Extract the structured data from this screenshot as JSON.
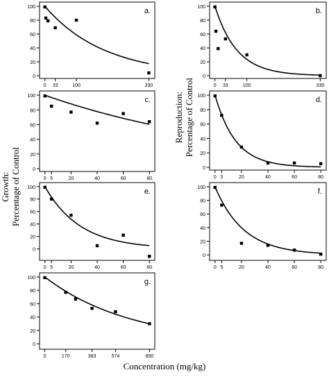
{
  "figure": {
    "growth_label": [
      "Growth:",
      "Percentage of Control"
    ],
    "reproduction_label": [
      "Reproduction:",
      "Percentage of Control"
    ],
    "xlabel": "Concentration (mg/kg)"
  },
  "chart_data": [
    {
      "type": "scatter",
      "panel": "a.",
      "xticks": [
        0,
        33,
        100,
        330
      ],
      "xtick_labels": [
        "0",
        "33",
        "100",
        "330"
      ],
      "xlim": [
        -8,
        340
      ],
      "yticks": [
        0,
        20,
        40,
        60,
        80,
        100
      ],
      "ylim": [
        0,
        102
      ],
      "points": [
        [
          0,
          99
        ],
        [
          3,
          83
        ],
        [
          10,
          79
        ],
        [
          33,
          69
        ],
        [
          100,
          80
        ],
        [
          330,
          4
        ]
      ],
      "fit": {
        "model": "exponential",
        "a": 100,
        "k": 0.0053
      }
    },
    {
      "type": "scatter",
      "panel": "b.",
      "xticks": [
        0,
        33,
        100,
        330
      ],
      "xtick_labels": [
        "0",
        "33",
        "100",
        "330"
      ],
      "xlim": [
        -8,
        340
      ],
      "yticks": [
        0,
        20,
        40,
        60,
        80,
        100
      ],
      "ylim": [
        0,
        102
      ],
      "points": [
        [
          0,
          99
        ],
        [
          3,
          64
        ],
        [
          10,
          39
        ],
        [
          33,
          53
        ],
        [
          100,
          30
        ],
        [
          330,
          0
        ]
      ],
      "fit": {
        "model": "exponential",
        "a": 100,
        "k": 0.0145
      }
    },
    {
      "type": "scatter",
      "panel": "c.",
      "xticks": [
        0,
        5,
        20,
        40,
        60,
        80
      ],
      "xtick_labels": [
        "0",
        "5",
        "20",
        "40",
        "60",
        "80"
      ],
      "xlim": [
        -2,
        82
      ],
      "yticks": [
        0,
        20,
        40,
        60,
        80,
        100
      ],
      "ylim": [
        0,
        102
      ],
      "points": [
        [
          0,
          99
        ],
        [
          5,
          85
        ],
        [
          20,
          77
        ],
        [
          40,
          62
        ],
        [
          60,
          75
        ],
        [
          80,
          64
        ]
      ],
      "fit": {
        "model": "exponential",
        "a": 100,
        "k": 0.0063
      }
    },
    {
      "type": "scatter",
      "panel": "d.",
      "xticks": [
        0,
        5,
        20,
        40,
        60,
        80
      ],
      "xtick_labels": [
        "0",
        "5",
        "20",
        "40",
        "60",
        "80"
      ],
      "xlim": [
        -2,
        82
      ],
      "yticks": [
        0,
        20,
        40,
        60,
        80,
        100
      ],
      "ylim": [
        0,
        102
      ],
      "points": [
        [
          0,
          99
        ],
        [
          5,
          72
        ],
        [
          20,
          28
        ],
        [
          40,
          6
        ],
        [
          60,
          6
        ],
        [
          80,
          5
        ]
      ],
      "fit": {
        "model": "exponential",
        "a": 100,
        "k": 0.064
      }
    },
    {
      "type": "scatter",
      "panel": "e.",
      "xticks": [
        0,
        5,
        20,
        40,
        60,
        80
      ],
      "xtick_labels": [
        "0",
        "5",
        "20",
        "40",
        "60",
        "80"
      ],
      "xlim": [
        -2,
        82
      ],
      "yticks": [
        0,
        20,
        40,
        60,
        80,
        100
      ],
      "ylim": [
        -14,
        102
      ],
      "points": [
        [
          0,
          99
        ],
        [
          5,
          80
        ],
        [
          20,
          54
        ],
        [
          40,
          5
        ],
        [
          60,
          22
        ],
        [
          80,
          -12
        ]
      ],
      "fit": {
        "model": "exponential",
        "a": 100,
        "k": 0.037
      }
    },
    {
      "type": "scatter",
      "panel": "f.",
      "xticks": [
        0,
        5,
        20,
        40,
        60,
        80
      ],
      "xtick_labels": [
        "0",
        "5",
        "20",
        "40",
        "60",
        "80"
      ],
      "xlim": [
        -2,
        82
      ],
      "yticks": [
        0,
        20,
        40,
        60,
        80,
        100
      ],
      "ylim": [
        -4,
        102
      ],
      "points": [
        [
          0,
          99
        ],
        [
          5,
          73
        ],
        [
          20,
          17
        ],
        [
          40,
          14
        ],
        [
          60,
          7
        ],
        [
          80,
          1
        ]
      ],
      "fit": {
        "model": "exponential",
        "a": 100,
        "k": 0.046
      }
    },
    {
      "type": "scatter",
      "panel": "g.",
      "xticks": [
        0,
        170,
        383,
        574,
        850
      ],
      "xtick_labels": [
        "0",
        "170",
        "383",
        "574",
        "850"
      ],
      "xlim": [
        -20,
        870
      ],
      "yticks": [
        0,
        20,
        40,
        60,
        80,
        100
      ],
      "ylim": [
        -4,
        102
      ],
      "points": [
        [
          0,
          99
        ],
        [
          170,
          77
        ],
        [
          250,
          67
        ],
        [
          383,
          53
        ],
        [
          574,
          48
        ],
        [
          850,
          30
        ]
      ],
      "fit": {
        "model": "exponential",
        "a": 100,
        "k": 0.00142
      }
    }
  ]
}
